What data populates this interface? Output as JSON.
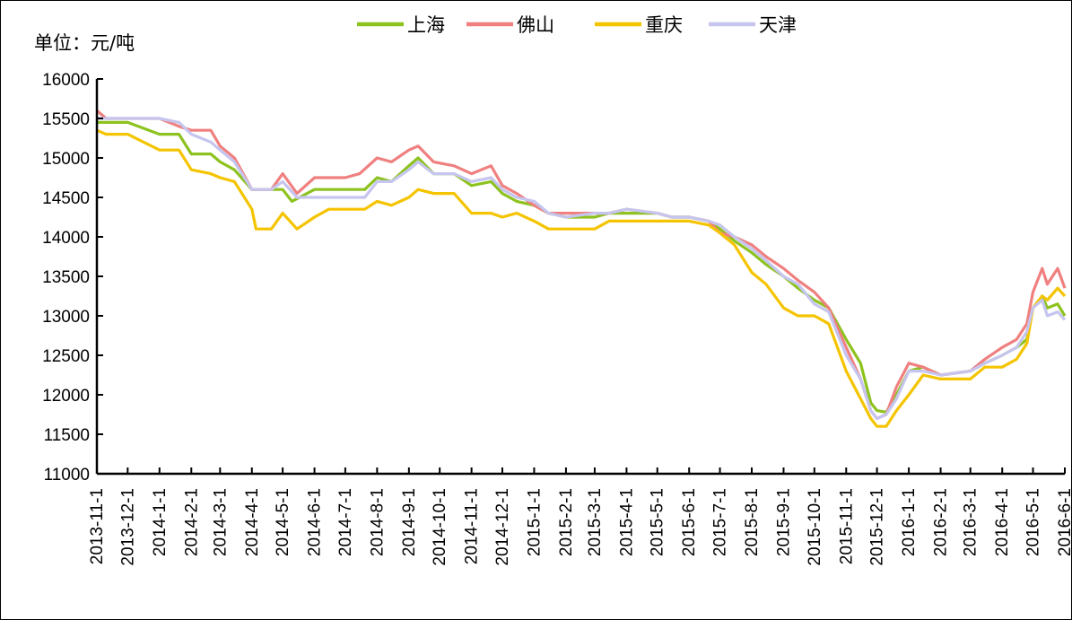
{
  "unit_label": "单位：元/吨",
  "chart_data": {
    "type": "line",
    "title": "",
    "xlabel": "",
    "ylabel": "单位：元/吨",
    "ylim": [
      11000,
      16000
    ],
    "y_ticks": [
      11000,
      11500,
      12000,
      12500,
      13000,
      13500,
      14000,
      14500,
      15000,
      15500,
      16000
    ],
    "x_range": [
      "2013-11-1",
      "2016-6-1"
    ],
    "x_ticks": [
      "2013-11-1",
      "2013-12-1",
      "2014-1-1",
      "2014-2-1",
      "2014-3-1",
      "2014-4-1",
      "2014-5-1",
      "2014-6-1",
      "2014-7-1",
      "2014-8-1",
      "2014-9-1",
      "2014-10-1",
      "2014-11-1",
      "2014-12-1",
      "2015-1-1",
      "2015-2-1",
      "2015-3-1",
      "2015-4-1",
      "2015-5-1",
      "2015-6-1",
      "2015-7-1",
      "2015-8-1",
      "2015-9-1",
      "2015-10-1",
      "2015-11-1",
      "2015-12-1",
      "2016-1-1",
      "2016-2-1",
      "2016-3-1",
      "2016-4-1",
      "2016-5-1",
      "2016-6-1"
    ],
    "legend_position": "top",
    "grid": false,
    "series": [
      {
        "name": "上海",
        "color": "#8dc21f",
        "points": [
          [
            "2013-11-1",
            15450
          ],
          [
            "2013-12-1",
            15450
          ],
          [
            "2014-1-1",
            15300
          ],
          [
            "2014-1-20",
            15300
          ],
          [
            "2014-2-1",
            15050
          ],
          [
            "2014-2-20",
            15050
          ],
          [
            "2014-3-1",
            14950
          ],
          [
            "2014-3-15",
            14850
          ],
          [
            "2014-4-1",
            14600
          ],
          [
            "2014-4-20",
            14600
          ],
          [
            "2014-5-1",
            14600
          ],
          [
            "2014-5-10",
            14450
          ],
          [
            "2014-6-1",
            14600
          ],
          [
            "2014-7-1",
            14600
          ],
          [
            "2014-7-20",
            14600
          ],
          [
            "2014-8-1",
            14750
          ],
          [
            "2014-8-15",
            14700
          ],
          [
            "2014-9-1",
            14900
          ],
          [
            "2014-9-10",
            15000
          ],
          [
            "2014-9-25",
            14800
          ],
          [
            "2014-10-15",
            14800
          ],
          [
            "2014-11-1",
            14650
          ],
          [
            "2014-11-20",
            14700
          ],
          [
            "2014-12-1",
            14550
          ],
          [
            "2014-12-15",
            14450
          ],
          [
            "2015-1-1",
            14400
          ],
          [
            "2015-1-15",
            14300
          ],
          [
            "2015-2-1",
            14250
          ],
          [
            "2015-3-1",
            14250
          ],
          [
            "2015-3-15",
            14300
          ],
          [
            "2015-4-1",
            14300
          ],
          [
            "2015-5-1",
            14300
          ],
          [
            "2015-5-15",
            14250
          ],
          [
            "2015-6-1",
            14250
          ],
          [
            "2015-6-20",
            14200
          ],
          [
            "2015-7-1",
            14100
          ],
          [
            "2015-7-15",
            13950
          ],
          [
            "2015-8-1",
            13800
          ],
          [
            "2015-8-15",
            13650
          ],
          [
            "2015-9-1",
            13500
          ],
          [
            "2015-9-15",
            13350
          ],
          [
            "2015-10-1",
            13200
          ],
          [
            "2015-10-15",
            13100
          ],
          [
            "2015-11-1",
            12700
          ],
          [
            "2015-11-15",
            12400
          ],
          [
            "2015-11-25",
            11900
          ],
          [
            "2015-12-1",
            11800
          ],
          [
            "2015-12-10",
            11780
          ],
          [
            "2015-12-20",
            12000
          ],
          [
            "2016-1-1",
            12300
          ],
          [
            "2016-1-15",
            12350
          ],
          [
            "2016-2-1",
            12250
          ],
          [
            "2016-3-1",
            12300
          ],
          [
            "2016-3-15",
            12400
          ],
          [
            "2016-4-1",
            12500
          ],
          [
            "2016-4-15",
            12600
          ],
          [
            "2016-4-25",
            12700
          ],
          [
            "2016-5-1",
            13100
          ],
          [
            "2016-5-10",
            13250
          ],
          [
            "2016-5-15",
            13100
          ],
          [
            "2016-5-25",
            13150
          ],
          [
            "2016-6-1",
            13000
          ]
        ]
      },
      {
        "name": "佛山",
        "color": "#f08080",
        "points": [
          [
            "2013-11-1",
            15600
          ],
          [
            "2013-11-10",
            15500
          ],
          [
            "2013-12-1",
            15500
          ],
          [
            "2014-1-1",
            15500
          ],
          [
            "2014-1-20",
            15400
          ],
          [
            "2014-2-1",
            15350
          ],
          [
            "2014-2-20",
            15350
          ],
          [
            "2014-3-1",
            15150
          ],
          [
            "2014-3-15",
            15000
          ],
          [
            "2014-4-1",
            14600
          ],
          [
            "2014-4-20",
            14600
          ],
          [
            "2014-5-1",
            14800
          ],
          [
            "2014-5-15",
            14550
          ],
          [
            "2014-6-1",
            14750
          ],
          [
            "2014-7-1",
            14750
          ],
          [
            "2014-7-15",
            14800
          ],
          [
            "2014-8-1",
            15000
          ],
          [
            "2014-8-15",
            14950
          ],
          [
            "2014-9-1",
            15100
          ],
          [
            "2014-9-10",
            15150
          ],
          [
            "2014-9-25",
            14950
          ],
          [
            "2014-10-15",
            14900
          ],
          [
            "2014-11-1",
            14800
          ],
          [
            "2014-11-20",
            14900
          ],
          [
            "2014-12-1",
            14650
          ],
          [
            "2014-12-15",
            14550
          ],
          [
            "2015-1-1",
            14400
          ],
          [
            "2015-1-15",
            14300
          ],
          [
            "2015-2-1",
            14300
          ],
          [
            "2015-3-1",
            14300
          ],
          [
            "2015-3-15",
            14300
          ],
          [
            "2015-4-1",
            14350
          ],
          [
            "2015-5-1",
            14300
          ],
          [
            "2015-5-15",
            14250
          ],
          [
            "2015-6-1",
            14250
          ],
          [
            "2015-6-20",
            14200
          ],
          [
            "2015-7-1",
            14050
          ],
          [
            "2015-7-15",
            14000
          ],
          [
            "2015-8-1",
            13900
          ],
          [
            "2015-8-15",
            13750
          ],
          [
            "2015-9-1",
            13600
          ],
          [
            "2015-9-15",
            13450
          ],
          [
            "2015-10-1",
            13300
          ],
          [
            "2015-10-15",
            13100
          ],
          [
            "2015-11-1",
            12600
          ],
          [
            "2015-11-15",
            12200
          ],
          [
            "2015-11-25",
            11800
          ],
          [
            "2015-12-1",
            11700
          ],
          [
            "2015-12-10",
            11750
          ],
          [
            "2015-12-20",
            12100
          ],
          [
            "2016-1-1",
            12400
          ],
          [
            "2016-1-15",
            12350
          ],
          [
            "2016-2-1",
            12250
          ],
          [
            "2016-3-1",
            12300
          ],
          [
            "2016-3-15",
            12450
          ],
          [
            "2016-4-1",
            12600
          ],
          [
            "2016-4-15",
            12700
          ],
          [
            "2016-4-25",
            12900
          ],
          [
            "2016-5-1",
            13300
          ],
          [
            "2016-5-10",
            13600
          ],
          [
            "2016-5-15",
            13400
          ],
          [
            "2016-5-25",
            13600
          ],
          [
            "2016-6-1",
            13350
          ]
        ]
      },
      {
        "name": "重庆",
        "color": "#f5c400",
        "points": [
          [
            "2013-11-1",
            15350
          ],
          [
            "2013-11-10",
            15300
          ],
          [
            "2013-12-1",
            15300
          ],
          [
            "2014-1-1",
            15100
          ],
          [
            "2014-1-20",
            15100
          ],
          [
            "2014-2-1",
            14850
          ],
          [
            "2014-2-20",
            14800
          ],
          [
            "2014-3-1",
            14750
          ],
          [
            "2014-3-15",
            14700
          ],
          [
            "2014-4-1",
            14350
          ],
          [
            "2014-4-5",
            14100
          ],
          [
            "2014-4-20",
            14100
          ],
          [
            "2014-5-1",
            14300
          ],
          [
            "2014-5-15",
            14100
          ],
          [
            "2014-6-1",
            14250
          ],
          [
            "2014-6-15",
            14350
          ],
          [
            "2014-7-1",
            14350
          ],
          [
            "2014-7-20",
            14350
          ],
          [
            "2014-8-1",
            14450
          ],
          [
            "2014-8-15",
            14400
          ],
          [
            "2014-9-1",
            14500
          ],
          [
            "2014-9-10",
            14600
          ],
          [
            "2014-9-25",
            14550
          ],
          [
            "2014-10-15",
            14550
          ],
          [
            "2014-11-1",
            14300
          ],
          [
            "2014-11-20",
            14300
          ],
          [
            "2014-12-1",
            14250
          ],
          [
            "2014-12-15",
            14300
          ],
          [
            "2015-1-1",
            14200
          ],
          [
            "2015-1-15",
            14100
          ],
          [
            "2015-2-1",
            14100
          ],
          [
            "2015-3-1",
            14100
          ],
          [
            "2015-3-15",
            14200
          ],
          [
            "2015-4-1",
            14200
          ],
          [
            "2015-5-1",
            14200
          ],
          [
            "2015-5-15",
            14200
          ],
          [
            "2015-6-1",
            14200
          ],
          [
            "2015-6-20",
            14150
          ],
          [
            "2015-7-1",
            14050
          ],
          [
            "2015-7-15",
            13900
          ],
          [
            "2015-8-1",
            13550
          ],
          [
            "2015-8-15",
            13400
          ],
          [
            "2015-9-1",
            13100
          ],
          [
            "2015-9-15",
            13000
          ],
          [
            "2015-10-1",
            13000
          ],
          [
            "2015-10-15",
            12900
          ],
          [
            "2015-11-1",
            12300
          ],
          [
            "2015-11-15",
            11950
          ],
          [
            "2015-11-25",
            11700
          ],
          [
            "2015-12-1",
            11600
          ],
          [
            "2015-12-10",
            11600
          ],
          [
            "2015-12-20",
            11800
          ],
          [
            "2016-1-1",
            12000
          ],
          [
            "2016-1-15",
            12250
          ],
          [
            "2016-2-1",
            12200
          ],
          [
            "2016-3-1",
            12200
          ],
          [
            "2016-3-15",
            12350
          ],
          [
            "2016-4-1",
            12350
          ],
          [
            "2016-4-15",
            12450
          ],
          [
            "2016-4-25",
            12650
          ],
          [
            "2016-5-1",
            13100
          ],
          [
            "2016-5-10",
            13250
          ],
          [
            "2016-5-15",
            13200
          ],
          [
            "2016-5-25",
            13350
          ],
          [
            "2016-6-1",
            13250
          ]
        ]
      },
      {
        "name": "天津",
        "color": "#c5c5ef",
        "points": [
          [
            "2013-11-1",
            15500
          ],
          [
            "2013-12-1",
            15500
          ],
          [
            "2014-1-1",
            15500
          ],
          [
            "2014-1-20",
            15450
          ],
          [
            "2014-2-1",
            15300
          ],
          [
            "2014-2-20",
            15200
          ],
          [
            "2014-3-1",
            15100
          ],
          [
            "2014-3-15",
            14950
          ],
          [
            "2014-4-1",
            14600
          ],
          [
            "2014-4-20",
            14600
          ],
          [
            "2014-5-1",
            14700
          ],
          [
            "2014-5-15",
            14500
          ],
          [
            "2014-6-1",
            14500
          ],
          [
            "2014-7-1",
            14500
          ],
          [
            "2014-7-20",
            14500
          ],
          [
            "2014-8-1",
            14700
          ],
          [
            "2014-8-15",
            14700
          ],
          [
            "2014-9-1",
            14850
          ],
          [
            "2014-9-10",
            14950
          ],
          [
            "2014-9-25",
            14800
          ],
          [
            "2014-10-15",
            14800
          ],
          [
            "2014-11-1",
            14700
          ],
          [
            "2014-11-20",
            14750
          ],
          [
            "2014-12-1",
            14600
          ],
          [
            "2014-12-15",
            14500
          ],
          [
            "2015-1-1",
            14450
          ],
          [
            "2015-1-15",
            14300
          ],
          [
            "2015-2-1",
            14250
          ],
          [
            "2015-3-1",
            14300
          ],
          [
            "2015-3-15",
            14300
          ],
          [
            "2015-4-1",
            14350
          ],
          [
            "2015-5-1",
            14300
          ],
          [
            "2015-5-15",
            14250
          ],
          [
            "2015-6-1",
            14250
          ],
          [
            "2015-6-20",
            14200
          ],
          [
            "2015-7-1",
            14150
          ],
          [
            "2015-7-15",
            14000
          ],
          [
            "2015-8-1",
            13850
          ],
          [
            "2015-8-15",
            13700
          ],
          [
            "2015-9-1",
            13500
          ],
          [
            "2015-9-15",
            13400
          ],
          [
            "2015-10-1",
            13150
          ],
          [
            "2015-10-15",
            13050
          ],
          [
            "2015-11-1",
            12500
          ],
          [
            "2015-11-15",
            12200
          ],
          [
            "2015-11-25",
            11800
          ],
          [
            "2015-12-1",
            11700
          ],
          [
            "2015-12-10",
            11750
          ],
          [
            "2015-12-20",
            11950
          ],
          [
            "2016-1-1",
            12300
          ],
          [
            "2016-1-15",
            12300
          ],
          [
            "2016-2-1",
            12250
          ],
          [
            "2016-3-1",
            12300
          ],
          [
            "2016-3-15",
            12400
          ],
          [
            "2016-4-1",
            12500
          ],
          [
            "2016-4-15",
            12600
          ],
          [
            "2016-4-25",
            12800
          ],
          [
            "2016-5-1",
            13100
          ],
          [
            "2016-5-10",
            13200
          ],
          [
            "2016-5-15",
            13000
          ],
          [
            "2016-5-25",
            13050
          ],
          [
            "2016-6-1",
            12950
          ]
        ]
      }
    ]
  }
}
